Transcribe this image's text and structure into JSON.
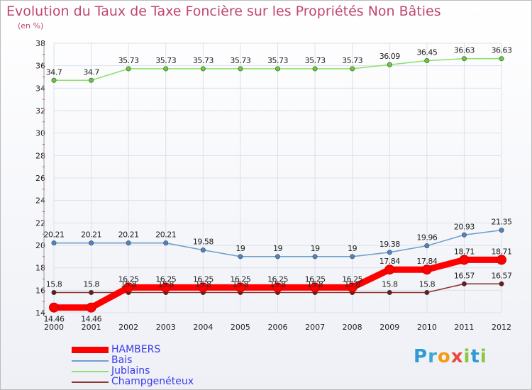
{
  "chart_data": {
    "type": "line",
    "title": "Evolution du Taux de Taxe Foncière sur les Propriétés Non Bâties",
    "ylabel": "(en %)",
    "xlabel": "",
    "ylim": [
      14,
      38
    ],
    "yticks": [
      14,
      16,
      18,
      20,
      22,
      24,
      26,
      28,
      30,
      32,
      34,
      36,
      38
    ],
    "x": [
      "2000",
      "2001",
      "2002",
      "2003",
      "2004",
      "2005",
      "2006",
      "2007",
      "2008",
      "2009",
      "2010",
      "2011",
      "2012"
    ],
    "grid": true,
    "legend_position": "bottom-left",
    "series": [
      {
        "name": "HAMBERS",
        "color": "#ff0000",
        "point_color": "#ff0000",
        "values": [
          14.46,
          14.46,
          16.25,
          16.25,
          16.25,
          16.25,
          16.25,
          16.25,
          16.25,
          17.84,
          17.84,
          18.71,
          18.71
        ],
        "labels": [
          "14.46",
          "14.46",
          "16.25",
          "16.25",
          "16.25",
          "16.25",
          "16.25",
          "16.25",
          "16.25",
          "17.84",
          "17.84",
          "18.71",
          "18.71"
        ]
      },
      {
        "name": "Bais",
        "color": "#6fa1cf",
        "point_color": "#4d85c4",
        "values": [
          20.21,
          20.21,
          20.21,
          20.21,
          19.58,
          19,
          19,
          19,
          19,
          19.38,
          19.96,
          20.93,
          21.35
        ],
        "labels": [
          "20.21",
          "20.21",
          "20.21",
          "20.21",
          "19.58",
          "19",
          "19",
          "19",
          "19",
          "19.38",
          "19.96",
          "20.93",
          "21.35"
        ]
      },
      {
        "name": "Jublains",
        "color": "#90e070",
        "point_color": "#66cc33",
        "values": [
          34.7,
          34.7,
          35.73,
          35.73,
          35.73,
          35.73,
          35.73,
          35.73,
          35.73,
          36.09,
          36.45,
          36.63,
          36.63
        ],
        "labels": [
          "34.7",
          "34.7",
          "35.73",
          "35.73",
          "35.73",
          "35.73",
          "35.73",
          "35.73",
          "35.73",
          "36.09",
          "36.45",
          "36.63",
          "36.63"
        ]
      },
      {
        "name": "Champgenéteux",
        "color": "#8b3535",
        "point_color": "#6b1a1a",
        "values": [
          15.8,
          15.8,
          15.8,
          15.8,
          15.8,
          15.8,
          15.8,
          15.8,
          15.8,
          15.8,
          15.8,
          16.57,
          16.57
        ],
        "labels": [
          "15.8",
          "15.8",
          "15.8",
          "15.8",
          "15.8",
          "15.8",
          "15.8",
          "15.8",
          "15.8",
          "15.8",
          "15.8",
          "16.57",
          "16.57"
        ]
      }
    ]
  },
  "logo": {
    "letters": [
      "P",
      "r",
      "o",
      "x",
      "i",
      "t",
      "i"
    ],
    "colors": [
      "#2f9ad6",
      "#3aa8d0",
      "#f39c12",
      "#e74c3c",
      "#8cc63f",
      "#2f9ad6",
      "#8cc63f"
    ]
  }
}
